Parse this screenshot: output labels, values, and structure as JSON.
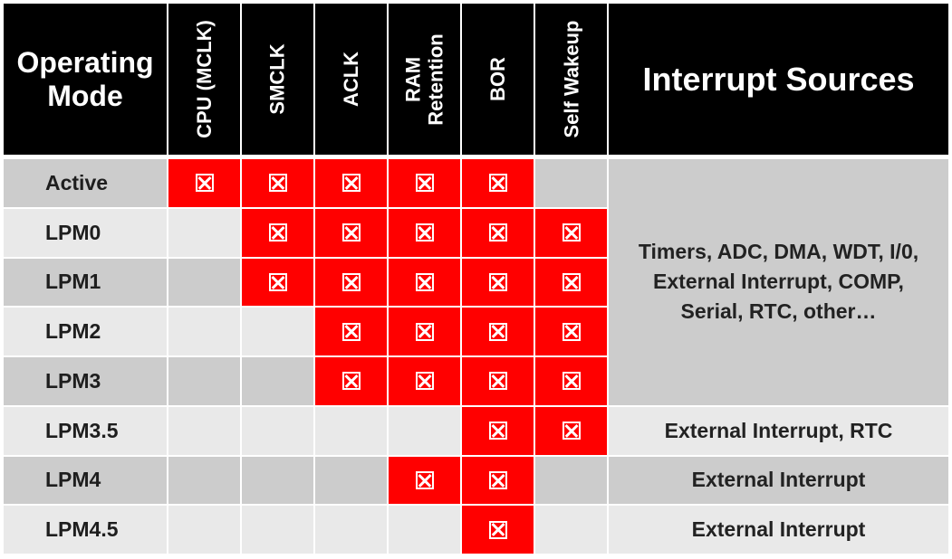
{
  "colors": {
    "header_bg": "#000000",
    "header_text": "#ffffff",
    "active_red": "#ff0000",
    "row_dark": "#cccccc",
    "row_light": "#e9e9e9",
    "interrupt_bg": "#cccccc",
    "interrupt_bg_light": "#e9e9e9"
  },
  "header": {
    "mode_line1": "Operating",
    "mode_line2": "Mode",
    "columns": [
      {
        "line1": "CPU (MCLK)",
        "line2": ""
      },
      {
        "line1": "SMCLK",
        "line2": ""
      },
      {
        "line1": "ACLK",
        "line2": ""
      },
      {
        "line1": "RAM",
        "line2": "Retention"
      },
      {
        "line1": "BOR",
        "line2": ""
      },
      {
        "line1": "Self Wakeup",
        "line2": ""
      }
    ],
    "interrupt": "Interrupt Sources"
  },
  "mark_icon": "boxed-x-icon",
  "rows": [
    {
      "mode": "Active",
      "on": [
        true,
        true,
        true,
        true,
        true,
        false
      ]
    },
    {
      "mode": "LPM0",
      "on": [
        false,
        true,
        true,
        true,
        true,
        true
      ]
    },
    {
      "mode": "LPM1",
      "on": [
        false,
        true,
        true,
        true,
        true,
        true
      ]
    },
    {
      "mode": "LPM2",
      "on": [
        false,
        false,
        true,
        true,
        true,
        true
      ]
    },
    {
      "mode": "LPM3",
      "on": [
        false,
        false,
        true,
        true,
        true,
        true
      ]
    },
    {
      "mode": "LPM3.5",
      "on": [
        false,
        false,
        false,
        false,
        true,
        true
      ]
    },
    {
      "mode": "LPM4",
      "on": [
        false,
        false,
        false,
        true,
        true,
        false
      ]
    },
    {
      "mode": "LPM4.5",
      "on": [
        false,
        false,
        false,
        false,
        true,
        false
      ]
    }
  ],
  "interrupt_groups": [
    {
      "rows": [
        0,
        4
      ],
      "lines": [
        "Timers, ADC, DMA, WDT, I/0,",
        "External Interrupt, COMP,",
        "Serial, RTC, other…"
      ]
    },
    {
      "rows": [
        5,
        5
      ],
      "lines": [
        "External Interrupt, RTC"
      ]
    },
    {
      "rows": [
        6,
        6
      ],
      "lines": [
        "External  Interrupt"
      ]
    },
    {
      "rows": [
        7,
        7
      ],
      "lines": [
        "External  Interrupt"
      ]
    }
  ]
}
